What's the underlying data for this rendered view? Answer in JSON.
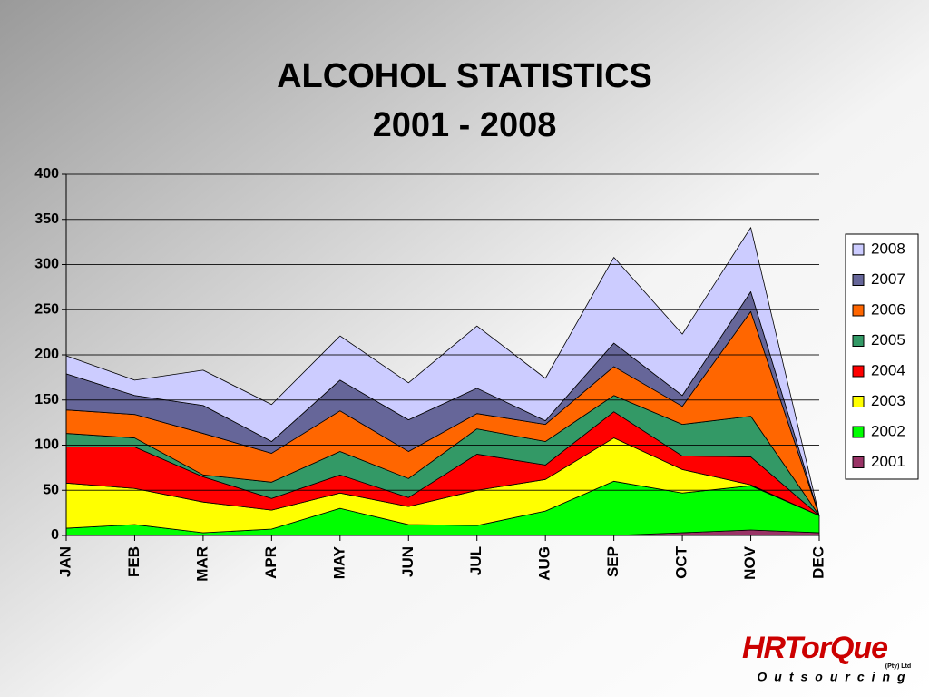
{
  "chart_data": {
    "type": "stacked_area",
    "title": "ALCOHOL STATISTICS",
    "subtitle": "2001 - 2008",
    "categories": [
      "JAN",
      "FEB",
      "MAR",
      "APR",
      "MAY",
      "JUN",
      "JUL",
      "AUG",
      "SEP",
      "OCT",
      "NOV",
      "DEC"
    ],
    "series": [
      {
        "name": "2001",
        "color": "#993366",
        "values": [
          0,
          0,
          0,
          0,
          0,
          0,
          0,
          0,
          0,
          3,
          6,
          3
        ]
      },
      {
        "name": "2002",
        "color": "#00ff00",
        "values": [
          8,
          12,
          3,
          7,
          30,
          12,
          11,
          27,
          60,
          44,
          49,
          19
        ]
      },
      {
        "name": "2003",
        "color": "#ffff00",
        "values": [
          50,
          40,
          34,
          21,
          17,
          20,
          39,
          35,
          48,
          26,
          1,
          0
        ]
      },
      {
        "name": "2004",
        "color": "#ff0000",
        "values": [
          40,
          46,
          28,
          13,
          20,
          10,
          40,
          16,
          29,
          15,
          31,
          0
        ]
      },
      {
        "name": "2005",
        "color": "#339966",
        "values": [
          15,
          10,
          2,
          18,
          26,
          21,
          28,
          26,
          18,
          35,
          45,
          0
        ]
      },
      {
        "name": "2006",
        "color": "#ff6600",
        "values": [
          26,
          26,
          46,
          32,
          45,
          30,
          17,
          19,
          32,
          20,
          116,
          0
        ]
      },
      {
        "name": "2007",
        "color": "#666699",
        "values": [
          40,
          21,
          31,
          13,
          34,
          35,
          28,
          4,
          26,
          12,
          22,
          0
        ]
      },
      {
        "name": "2008",
        "color": "#ccccff",
        "values": [
          20,
          17,
          39,
          41,
          49,
          41,
          69,
          47,
          95,
          68,
          71,
          0
        ]
      }
    ],
    "ylim": [
      0,
      400
    ],
    "yticks": [
      0,
      50,
      100,
      150,
      200,
      250,
      300,
      350,
      400
    ],
    "grid": true,
    "legend": "right"
  },
  "logo": {
    "name": "HRTorQue",
    "tagline": "Outsourcing",
    "suffix": "(Pty) Ltd"
  }
}
